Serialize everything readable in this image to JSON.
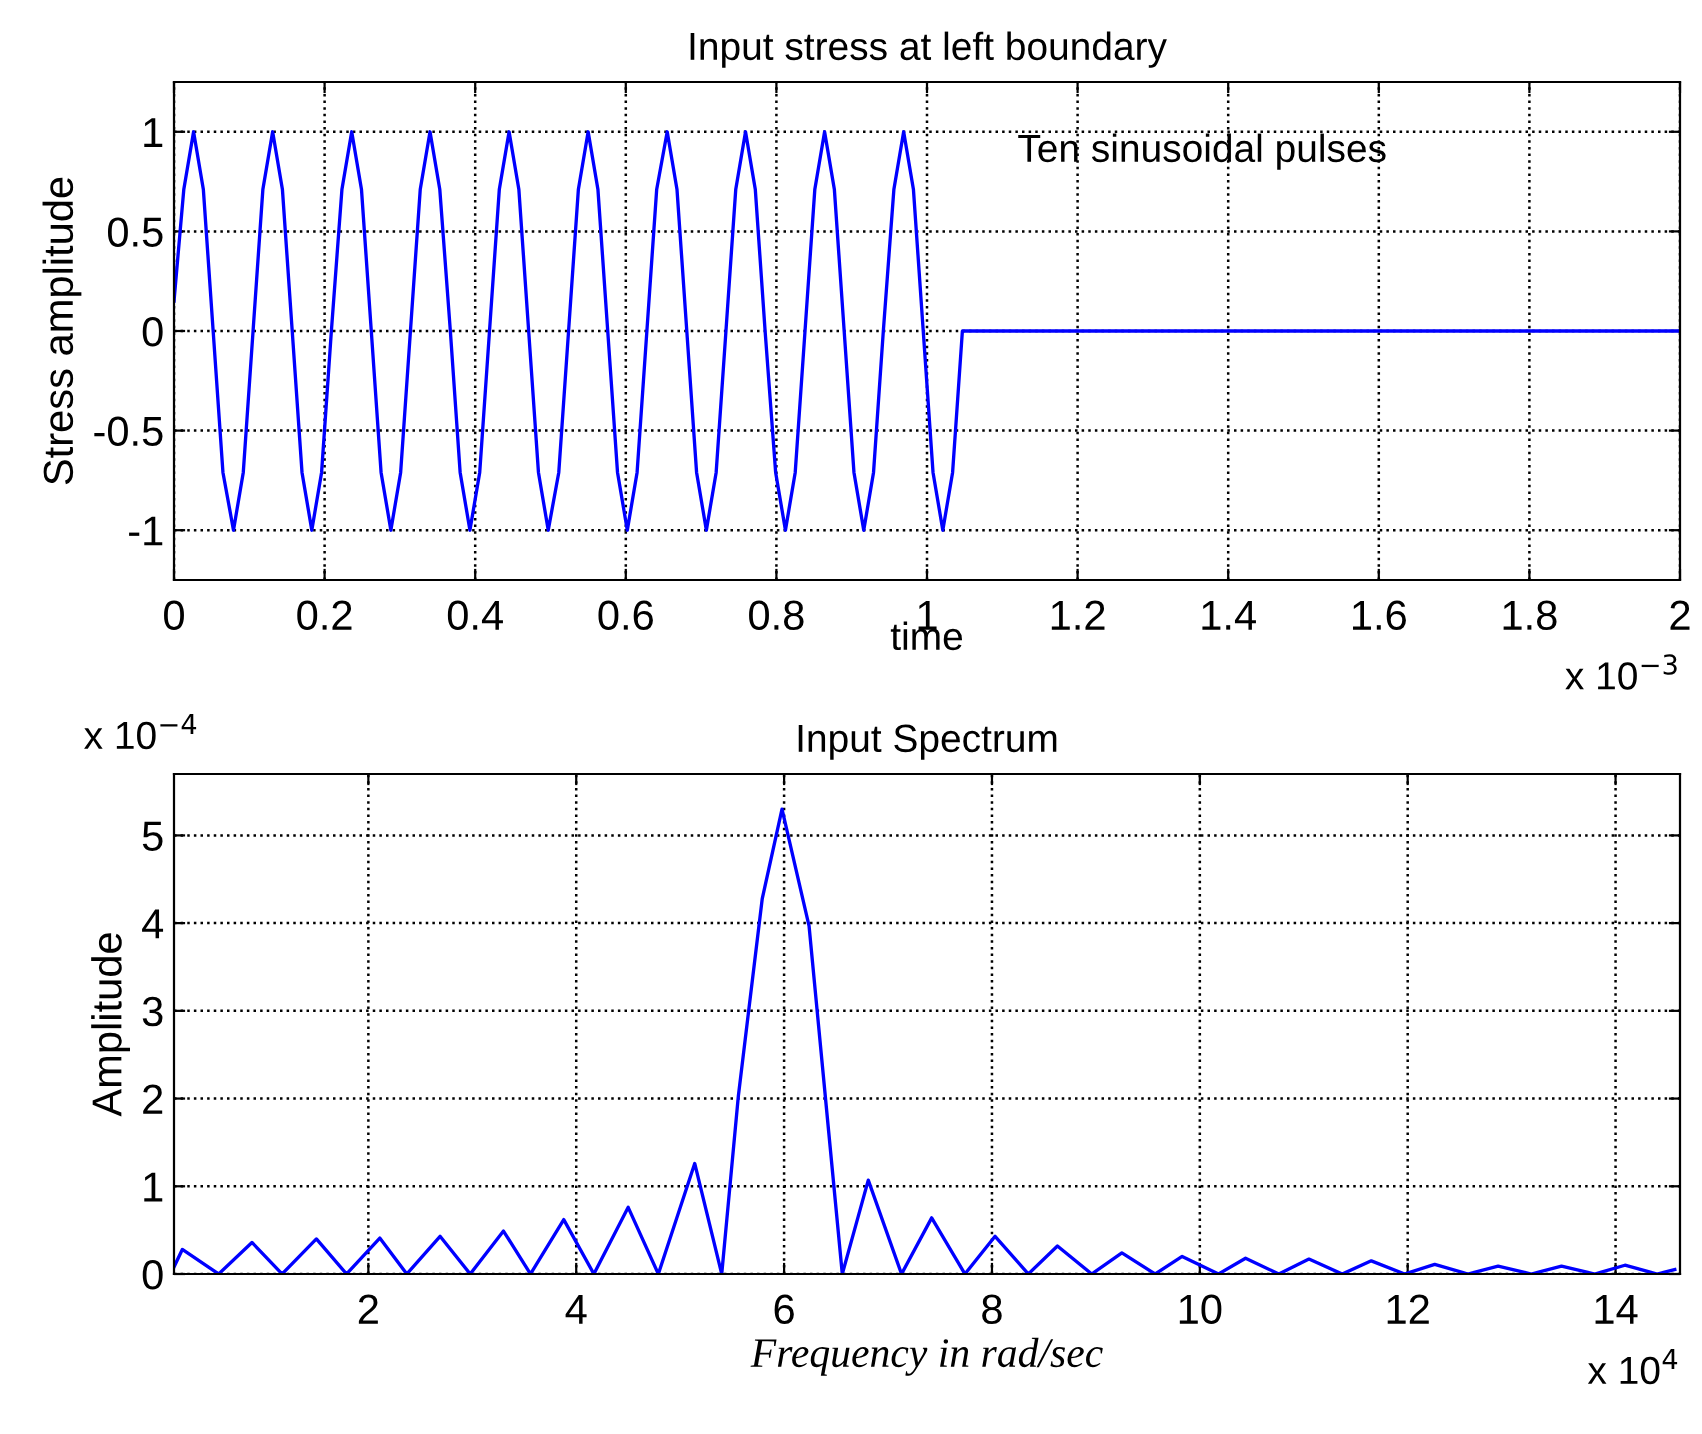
{
  "chart_data": [
    {
      "type": "line",
      "title": "Input stress at left boundary",
      "xlabel": "time",
      "ylabel": "Stress amplitude",
      "annotations": [
        "Ten sinusoidal pulses",
        "x 10$^{−3}$"
      ],
      "xlim": [
        0,
        2
      ],
      "ylim": [
        -1.25,
        1.25
      ],
      "xticks": [
        0,
        0.2,
        0.4,
        0.6,
        0.8,
        1,
        1.2,
        1.4,
        1.6,
        1.8,
        2
      ],
      "yticks": [
        -1,
        -0.5,
        0,
        0.5,
        1
      ],
      "grid": true,
      "series": [
        {
          "color": "#0000ff",
          "x": [
            0,
            0.013,
            0.026,
            0.039,
            0.052,
            0.065,
            0.079,
            0.092,
            0.105,
            0.118,
            0.131,
            0.144,
            0.157,
            0.17,
            0.183,
            0.196,
            0.209,
            0.223,
            0.236,
            0.249,
            0.262,
            0.275,
            0.288,
            0.301,
            0.314,
            0.327,
            0.34,
            0.353,
            0.367,
            0.38,
            0.393,
            0.406,
            0.419,
            0.432,
            0.445,
            0.458,
            0.471,
            0.484,
            0.497,
            0.511,
            0.524,
            0.537,
            0.55,
            0.563,
            0.576,
            0.589,
            0.602,
            0.615,
            0.628,
            0.641,
            0.655,
            0.668,
            0.681,
            0.694,
            0.707,
            0.72,
            0.733,
            0.746,
            0.759,
            0.772,
            0.785,
            0.799,
            0.812,
            0.825,
            0.838,
            0.851,
            0.864,
            0.877,
            0.89,
            0.903,
            0.916,
            0.929,
            0.942,
            0.956,
            0.969,
            0.982,
            0.995,
            1.008,
            1.021,
            1.034,
            1.047,
            2
          ],
          "values": [
            0.15,
            0.71,
            1,
            0.71,
            0,
            -0.71,
            -1,
            -0.71,
            0,
            0.71,
            1,
            0.71,
            0,
            -0.71,
            -1,
            -0.71,
            0,
            0.71,
            1,
            0.71,
            0,
            -0.71,
            -1,
            -0.71,
            0,
            0.71,
            1,
            0.71,
            0,
            -0.71,
            -1,
            -0.71,
            0,
            0.71,
            1,
            0.71,
            0,
            -0.71,
            -1,
            -0.71,
            0,
            0.71,
            1,
            0.71,
            0,
            -0.71,
            -1,
            -0.71,
            0,
            0.71,
            1,
            0.71,
            0,
            -0.71,
            -1,
            -0.71,
            0,
            0.71,
            1,
            0.71,
            0,
            -0.71,
            -1,
            -0.71,
            0,
            0.71,
            1,
            0.71,
            0,
            -0.71,
            -1,
            -0.71,
            0,
            0.71,
            1,
            0.71,
            0,
            -0.71,
            -1,
            -0.71,
            0,
            0
          ]
        }
      ]
    },
    {
      "type": "line",
      "title": "Input Spectrum",
      "xlabel": "Frequency in rad/sec",
      "ylabel": "Amplitude",
      "annotations": [
        "x 10$^{−4}$",
        "x 10$^{4}$"
      ],
      "xlim": [
        0.13,
        14.62
      ],
      "ylim": [
        0,
        5.7
      ],
      "xticks": [
        2,
        4,
        6,
        8,
        10,
        12,
        14
      ],
      "yticks": [
        0,
        1,
        2,
        3,
        4,
        5
      ],
      "grid": true,
      "series": [
        {
          "color": "#0000ff",
          "x": [
            0.13,
            0.21,
            0.56,
            0.88,
            1.17,
            1.5,
            1.79,
            2.11,
            2.37,
            2.69,
            2.98,
            3.3,
            3.56,
            3.88,
            4.17,
            4.5,
            4.79,
            5.14,
            5.4,
            5.56,
            5.79,
            5.98,
            6.24,
            6.43,
            6.56,
            6.81,
            7.13,
            7.42,
            7.74,
            8.03,
            8.35,
            8.63,
            8.96,
            9.25,
            9.57,
            9.83,
            10.18,
            10.44,
            10.76,
            11.05,
            11.37,
            11.65,
            11.97,
            12.26,
            12.58,
            12.87,
            13.19,
            13.48,
            13.8,
            14.09,
            14.4,
            14.57
          ],
          "values": [
            0.08,
            0.28,
            0,
            0.36,
            0,
            0.4,
            0,
            0.41,
            0,
            0.43,
            0,
            0.49,
            0,
            0.62,
            0,
            0.76,
            0,
            1.26,
            0,
            2.03,
            4.28,
            5.3,
            3.97,
            1.61,
            0,
            1.07,
            0,
            0.64,
            0,
            0.43,
            0,
            0.32,
            0,
            0.24,
            0,
            0.2,
            0,
            0.18,
            0,
            0.17,
            0,
            0.15,
            0,
            0.11,
            0,
            0.09,
            0,
            0.09,
            0,
            0.1,
            0,
            0.05
          ]
        }
      ]
    }
  ]
}
